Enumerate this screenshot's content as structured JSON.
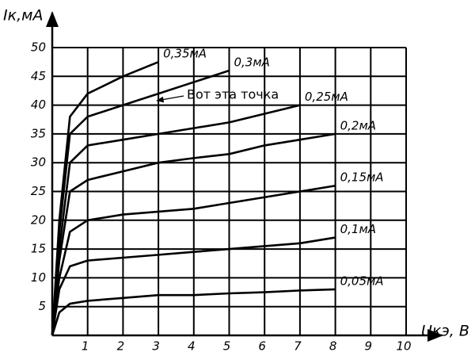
{
  "chart_data": {
    "type": "line",
    "y_label": "Iк,мА",
    "x_label": "Uкэ, В",
    "annotation": "Вот эта точка",
    "x": [
      0,
      0.2,
      0.5,
      1,
      2,
      3,
      4,
      5,
      6,
      7,
      8
    ],
    "series": [
      {
        "name": "0,35мА",
        "color": "#000000",
        "values": [
          0,
          20,
          38,
          42,
          45,
          47.5,
          null,
          null,
          null,
          null,
          null
        ]
      },
      {
        "name": "0,3мА",
        "color": "#000000",
        "values": [
          0,
          18,
          35,
          38,
          40,
          42,
          44,
          46,
          null,
          null,
          null
        ]
      },
      {
        "name": "0,25мА",
        "color": "#000000",
        "values": [
          0,
          15,
          30,
          33,
          34,
          35,
          36,
          37,
          38.5,
          40,
          null
        ]
      },
      {
        "name": "0,2мА",
        "color": "#000000",
        "values": [
          0,
          13,
          25,
          27,
          28.5,
          30,
          30.8,
          31.5,
          33,
          34,
          35
        ]
      },
      {
        "name": "0,15мА",
        "color": "#000000",
        "values": [
          0,
          10,
          18,
          20,
          21,
          21.5,
          22,
          23,
          24,
          25,
          26
        ]
      },
      {
        "name": "0,1мА",
        "color": "#000000",
        "values": [
          0,
          8,
          12,
          13,
          13.5,
          14,
          14.5,
          15,
          15.5,
          16,
          17
        ]
      },
      {
        "name": "0,05мА",
        "color": "#000000",
        "values": [
          0,
          4,
          5.5,
          6,
          6.5,
          7,
          7,
          7.3,
          7.5,
          7.8,
          8
        ]
      }
    ],
    "xlim": [
      0,
      10
    ],
    "ylim": [
      0,
      50
    ],
    "xticks": [
      1,
      2,
      3,
      4,
      5,
      6,
      7,
      8,
      9,
      10
    ],
    "yticks": [
      5,
      10,
      15,
      20,
      25,
      30,
      35,
      40,
      45,
      50
    ],
    "grid": true
  }
}
